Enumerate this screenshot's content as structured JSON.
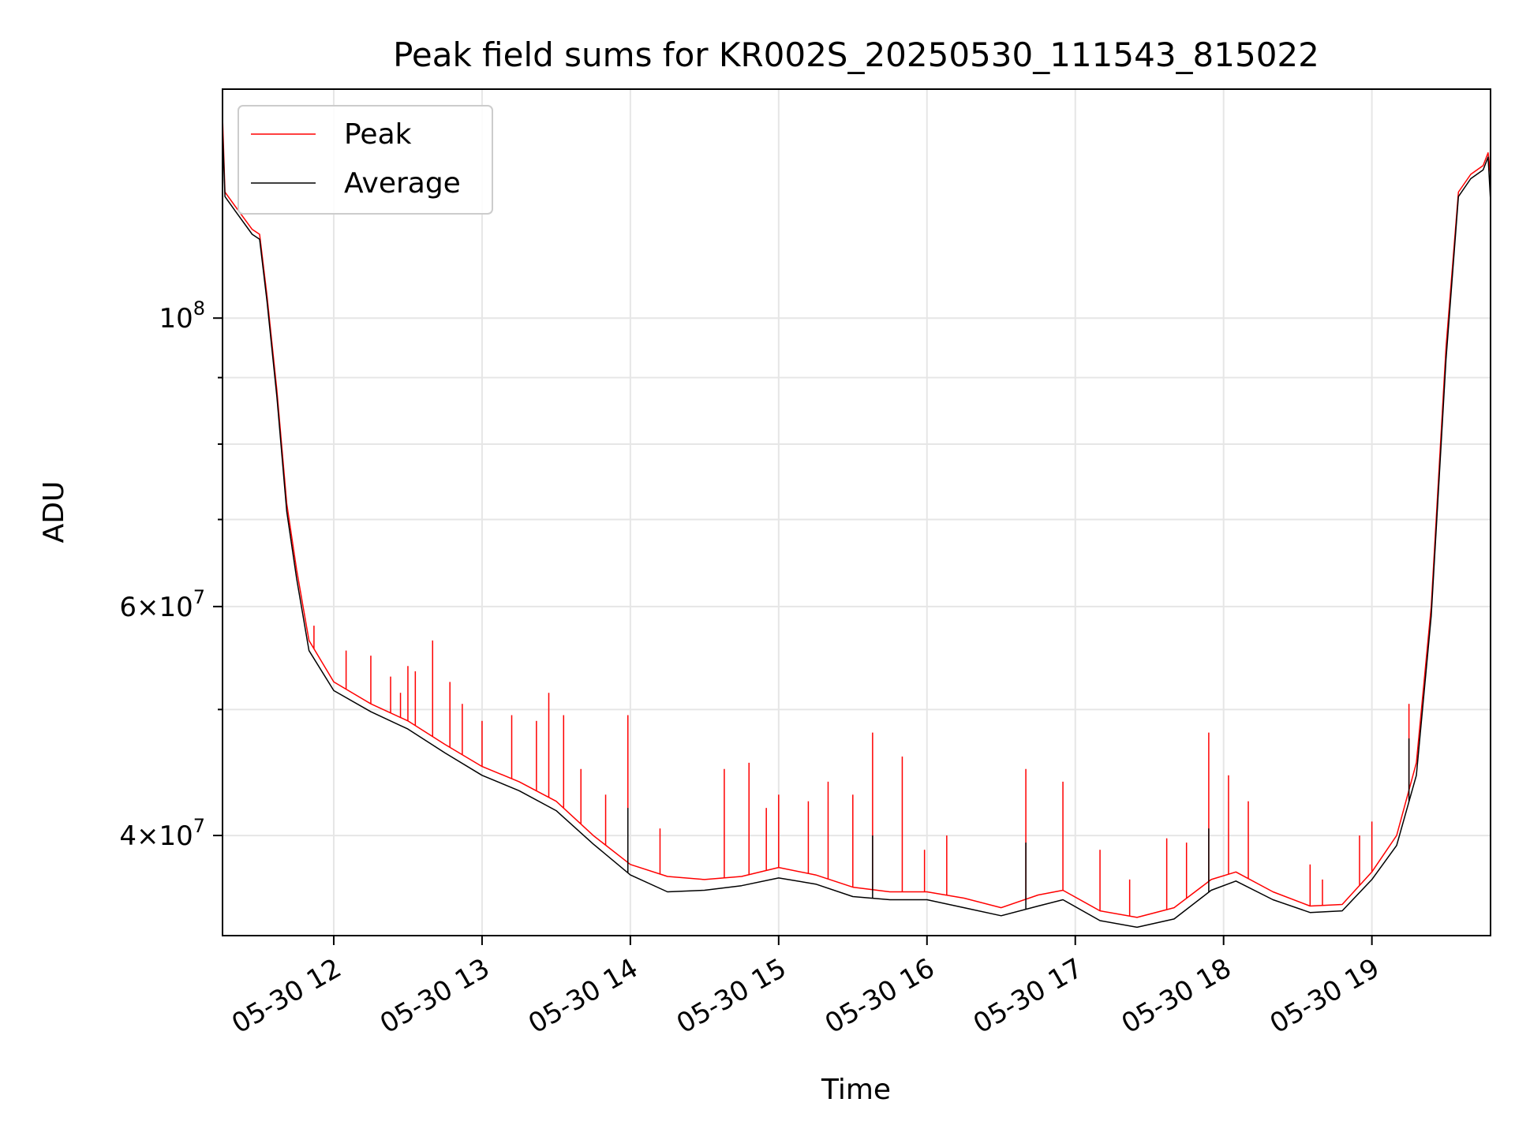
{
  "chart_data": {
    "type": "line",
    "title": "Peak field sums for KR002S_20250530_111543_815022",
    "xlabel": "Time",
    "ylabel": "ADU",
    "x_scale": "time",
    "y_scale": "log",
    "xlim": [
      "2025-05-30 11:15",
      "2025-05-30 19:48"
    ],
    "ylim": [
      33500000,
      150000000
    ],
    "x_ticks": [
      {
        "value": "2025-05-30 12:00",
        "label": "05-30 12"
      },
      {
        "value": "2025-05-30 13:00",
        "label": "05-30 13"
      },
      {
        "value": "2025-05-30 14:00",
        "label": "05-30 14"
      },
      {
        "value": "2025-05-30 15:00",
        "label": "05-30 15"
      },
      {
        "value": "2025-05-30 16:00",
        "label": "05-30 16"
      },
      {
        "value": "2025-05-30 17:00",
        "label": "05-30 17"
      },
      {
        "value": "2025-05-30 18:00",
        "label": "05-30 18"
      },
      {
        "value": "2025-05-30 19:00",
        "label": "05-30 19"
      }
    ],
    "y_major_ticks": [
      {
        "value": 40000000,
        "mantissa": "4",
        "exponent": "7"
      },
      {
        "value": 60000000,
        "mantissa": "6",
        "exponent": "7"
      },
      {
        "value": 100000000,
        "mantissa": "10",
        "exponent": "8"
      }
    ],
    "y_minor_ticks": [
      50000000,
      70000000,
      80000000,
      90000000
    ],
    "grid": true,
    "legend": {
      "placement": "upper left"
    },
    "series": [
      {
        "name": "Peak",
        "color": "#ff0000",
        "points": [
          [
            "2025-05-30 11:15",
            143000000
          ],
          [
            "2025-05-30 11:16",
            125000000
          ],
          [
            "2025-05-30 11:20",
            122000000
          ],
          [
            "2025-05-30 11:27",
            117000000
          ],
          [
            "2025-05-30 11:30",
            116000000
          ],
          [
            "2025-05-30 11:33",
            104000000
          ],
          [
            "2025-05-30 11:37",
            88000000
          ],
          [
            "2025-05-30 11:41",
            72000000
          ],
          [
            "2025-05-30 11:45",
            64000000
          ],
          [
            "2025-05-30 11:50",
            56500000
          ],
          [
            "2025-05-30 12:00",
            52500000
          ],
          [
            "2025-05-30 12:15",
            50500000
          ],
          [
            "2025-05-30 12:30",
            49000000
          ],
          [
            "2025-05-30 12:45",
            47000000
          ],
          [
            "2025-05-30 13:00",
            45200000
          ],
          [
            "2025-05-30 13:15",
            44000000
          ],
          [
            "2025-05-30 13:30",
            42500000
          ],
          [
            "2025-05-30 13:45",
            40000000
          ],
          [
            "2025-05-30 14:00",
            38000000
          ],
          [
            "2025-05-30 14:15",
            37200000
          ],
          [
            "2025-05-30 14:30",
            37000000
          ],
          [
            "2025-05-30 14:45",
            37200000
          ],
          [
            "2025-05-30 15:00",
            37800000
          ],
          [
            "2025-05-30 15:15",
            37300000
          ],
          [
            "2025-05-30 15:30",
            36500000
          ],
          [
            "2025-05-30 15:45",
            36200000
          ],
          [
            "2025-05-30 16:00",
            36200000
          ],
          [
            "2025-05-30 16:15",
            35800000
          ],
          [
            "2025-05-30 16:30",
            35200000
          ],
          [
            "2025-05-30 16:45",
            36000000
          ],
          [
            "2025-05-30 16:55",
            36300000
          ],
          [
            "2025-05-30 17:10",
            35000000
          ],
          [
            "2025-05-30 17:25",
            34600000
          ],
          [
            "2025-05-30 17:40",
            35200000
          ],
          [
            "2025-05-30 17:55",
            37000000
          ],
          [
            "2025-05-30 18:05",
            37500000
          ],
          [
            "2025-05-30 18:20",
            36200000
          ],
          [
            "2025-05-30 18:35",
            35300000
          ],
          [
            "2025-05-30 18:48",
            35400000
          ],
          [
            "2025-05-30 19:00",
            37500000
          ],
          [
            "2025-05-30 19:10",
            40000000
          ],
          [
            "2025-05-30 19:18",
            45500000
          ],
          [
            "2025-05-30 19:24",
            60000000
          ],
          [
            "2025-05-30 19:30",
            95000000
          ],
          [
            "2025-05-30 19:35",
            125000000
          ],
          [
            "2025-05-30 19:40",
            129000000
          ],
          [
            "2025-05-30 19:45",
            131000000
          ],
          [
            "2025-05-30 19:47",
            134000000
          ],
          [
            "2025-05-30 19:48",
            129000000
          ]
        ],
        "spikes": [
          [
            "2025-05-30 11:52",
            58000000
          ],
          [
            "2025-05-30 12:05",
            55500000
          ],
          [
            "2025-05-30 12:15",
            55000000
          ],
          [
            "2025-05-30 12:23",
            53000000
          ],
          [
            "2025-05-30 12:27",
            51500000
          ],
          [
            "2025-05-30 12:30",
            54000000
          ],
          [
            "2025-05-30 12:33",
            53500000
          ],
          [
            "2025-05-30 12:40",
            56500000
          ],
          [
            "2025-05-30 12:47",
            52500000
          ],
          [
            "2025-05-30 12:52",
            50500000
          ],
          [
            "2025-05-30 13:00",
            49000000
          ],
          [
            "2025-05-30 13:12",
            49500000
          ],
          [
            "2025-05-30 13:22",
            49000000
          ],
          [
            "2025-05-30 13:27",
            51500000
          ],
          [
            "2025-05-30 13:33",
            49500000
          ],
          [
            "2025-05-30 13:40",
            45000000
          ],
          [
            "2025-05-30 13:50",
            43000000
          ],
          [
            "2025-05-30 13:59",
            49500000
          ],
          [
            "2025-05-30 14:12",
            40500000
          ],
          [
            "2025-05-30 14:38",
            45000000
          ],
          [
            "2025-05-30 14:48",
            45500000
          ],
          [
            "2025-05-30 14:55",
            42000000
          ],
          [
            "2025-05-30 15:00",
            43000000
          ],
          [
            "2025-05-30 15:12",
            42500000
          ],
          [
            "2025-05-30 15:20",
            44000000
          ],
          [
            "2025-05-30 15:30",
            43000000
          ],
          [
            "2025-05-30 15:38",
            48000000
          ],
          [
            "2025-05-30 15:50",
            46000000
          ],
          [
            "2025-05-30 15:59",
            39000000
          ],
          [
            "2025-05-30 16:08",
            40000000
          ],
          [
            "2025-05-30 16:40",
            45000000
          ],
          [
            "2025-05-30 16:55",
            44000000
          ],
          [
            "2025-05-30 17:10",
            39000000
          ],
          [
            "2025-05-30 17:22",
            37000000
          ],
          [
            "2025-05-30 17:37",
            39800000
          ],
          [
            "2025-05-30 17:45",
            39500000
          ],
          [
            "2025-05-30 17:54",
            48000000
          ],
          [
            "2025-05-30 18:02",
            44500000
          ],
          [
            "2025-05-30 18:10",
            42500000
          ],
          [
            "2025-05-30 18:35",
            38000000
          ],
          [
            "2025-05-30 18:40",
            37000000
          ],
          [
            "2025-05-30 18:55",
            40000000
          ],
          [
            "2025-05-30 19:00",
            41000000
          ],
          [
            "2025-05-30 19:15",
            50500000
          ]
        ]
      },
      {
        "name": "Average",
        "color": "#000000",
        "points": [
          [
            "2025-05-30 11:15",
            140000000
          ],
          [
            "2025-05-30 11:16",
            124000000
          ],
          [
            "2025-05-30 11:20",
            121000000
          ],
          [
            "2025-05-30 11:27",
            116000000
          ],
          [
            "2025-05-30 11:30",
            115000000
          ],
          [
            "2025-05-30 11:33",
            103000000
          ],
          [
            "2025-05-30 11:37",
            87000000
          ],
          [
            "2025-05-30 11:41",
            71000000
          ],
          [
            "2025-05-30 11:45",
            63000000
          ],
          [
            "2025-05-30 11:50",
            55500000
          ],
          [
            "2025-05-30 12:00",
            51700000
          ],
          [
            "2025-05-30 12:15",
            49800000
          ],
          [
            "2025-05-30 12:30",
            48300000
          ],
          [
            "2025-05-30 12:45",
            46300000
          ],
          [
            "2025-05-30 13:00",
            44500000
          ],
          [
            "2025-05-30 13:15",
            43300000
          ],
          [
            "2025-05-30 13:30",
            41800000
          ],
          [
            "2025-05-30 13:45",
            39400000
          ],
          [
            "2025-05-30 14:00",
            37300000
          ],
          [
            "2025-05-30 14:15",
            36200000
          ],
          [
            "2025-05-30 14:30",
            36300000
          ],
          [
            "2025-05-30 14:45",
            36600000
          ],
          [
            "2025-05-30 15:00",
            37100000
          ],
          [
            "2025-05-30 15:15",
            36700000
          ],
          [
            "2025-05-30 15:30",
            35900000
          ],
          [
            "2025-05-30 15:45",
            35700000
          ],
          [
            "2025-05-30 16:00",
            35700000
          ],
          [
            "2025-05-30 16:15",
            35200000
          ],
          [
            "2025-05-30 16:30",
            34700000
          ],
          [
            "2025-05-30 16:45",
            35300000
          ],
          [
            "2025-05-30 16:55",
            35700000
          ],
          [
            "2025-05-30 17:10",
            34400000
          ],
          [
            "2025-05-30 17:25",
            34000000
          ],
          [
            "2025-05-30 17:40",
            34500000
          ],
          [
            "2025-05-30 17:55",
            36300000
          ],
          [
            "2025-05-30 18:05",
            36900000
          ],
          [
            "2025-05-30 18:20",
            35700000
          ],
          [
            "2025-05-30 18:35",
            34900000
          ],
          [
            "2025-05-30 18:48",
            35000000
          ],
          [
            "2025-05-30 19:00",
            37000000
          ],
          [
            "2025-05-30 19:10",
            39300000
          ],
          [
            "2025-05-30 19:18",
            44500000
          ],
          [
            "2025-05-30 19:24",
            59000000
          ],
          [
            "2025-05-30 19:30",
            93000000
          ],
          [
            "2025-05-30 19:35",
            124000000
          ],
          [
            "2025-05-30 19:40",
            128000000
          ],
          [
            "2025-05-30 19:45",
            130000000
          ],
          [
            "2025-05-30 19:47",
            133000000
          ],
          [
            "2025-05-30 19:48",
            123000000
          ]
        ],
        "spikes": [
          [
            "2025-05-30 13:59",
            42000000
          ],
          [
            "2025-05-30 15:38",
            40000000
          ],
          [
            "2025-05-30 16:40",
            39500000
          ],
          [
            "2025-05-30 17:54",
            40500000
          ],
          [
            "2025-05-30 19:15",
            47500000
          ]
        ]
      }
    ]
  }
}
